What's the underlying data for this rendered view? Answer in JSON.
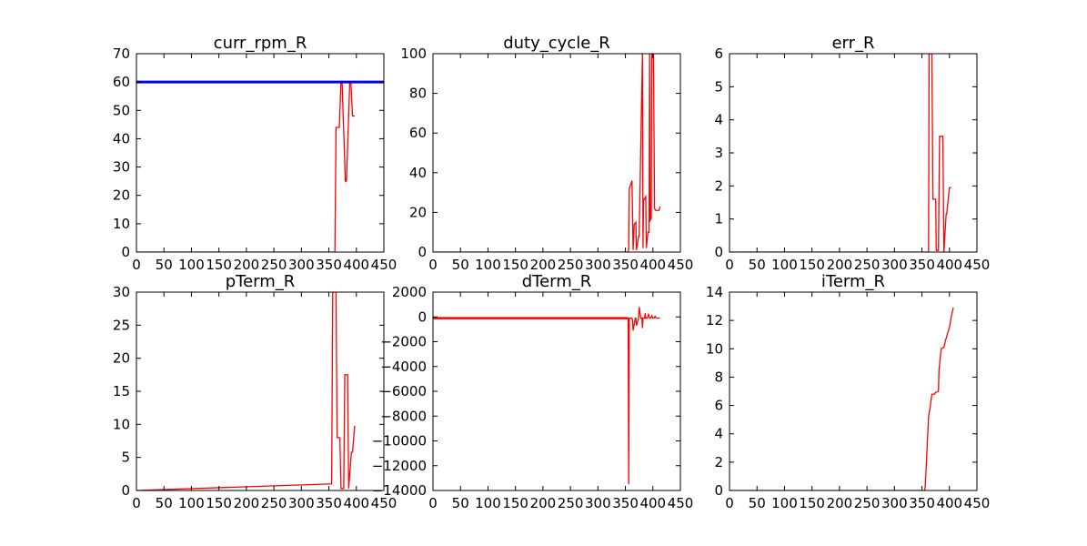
{
  "chart_data": [
    {
      "type": "line",
      "title": "curr_rpm_R",
      "xlim": [
        0,
        450
      ],
      "ylim": [
        0,
        70
      ],
      "xticks": [
        "0",
        "50",
        "100",
        "150",
        "200",
        "250",
        "300",
        "350",
        "400",
        "450"
      ],
      "yticks": [
        "0",
        "10",
        "20",
        "30",
        "40",
        "50",
        "60",
        "70"
      ],
      "series": [
        {
          "color": "#ff0000",
          "width": 1.3,
          "x": [
            0,
            361,
            363,
            369,
            372,
            374,
            380,
            382,
            388,
            390,
            393,
            397
          ],
          "y": [
            0,
            0,
            44,
            44,
            60,
            60,
            25,
            25,
            60,
            60,
            48,
            48
          ]
        },
        {
          "color": "#0000ff",
          "width": 3,
          "x": [
            0,
            450
          ],
          "y": [
            60,
            60
          ]
        }
      ]
    },
    {
      "type": "line",
      "title": "duty_cycle_R",
      "xlim": [
        0,
        450
      ],
      "ylim": [
        0,
        100
      ],
      "xticks": [
        "0",
        "50",
        "100",
        "150",
        "200",
        "250",
        "300",
        "350",
        "400",
        "450"
      ],
      "yticks": [
        "0",
        "20",
        "40",
        "60",
        "80",
        "100"
      ],
      "series": [
        {
          "color": "#ff0000",
          "width": 1.3,
          "x": [
            0,
            355,
            356,
            357,
            362,
            364,
            366,
            369,
            370,
            374,
            375,
            381,
            382,
            383,
            387,
            388,
            391,
            393,
            394,
            395,
            397,
            398,
            401,
            403,
            405,
            410,
            411,
            413
          ],
          "y": [
            0,
            0,
            2,
            32,
            36,
            1,
            14,
            15,
            1,
            8,
            8,
            100,
            2,
            26,
            28,
            2,
            10,
            10,
            100,
            16,
            17,
            100,
            100,
            22,
            21,
            21,
            21,
            23
          ]
        }
      ]
    },
    {
      "type": "line",
      "title": "err_R",
      "xlim": [
        0,
        450
      ],
      "ylim": [
        0,
        6
      ],
      "xticks": [
        "0",
        "50",
        "100",
        "150",
        "200",
        "250",
        "300",
        "350",
        "400",
        "450"
      ],
      "yticks": [
        "0",
        "1",
        "2",
        "3",
        "4",
        "5",
        "6"
      ],
      "series": [
        {
          "color": "#ff0000",
          "width": 1.3,
          "x": [
            0,
            362,
            363,
            368,
            370,
            375,
            376,
            380,
            382,
            388,
            390,
            394,
            395,
            400,
            403
          ],
          "y": [
            0,
            0,
            6,
            6,
            1.6,
            1.6,
            0.05,
            0.05,
            3.5,
            3.5,
            0,
            1.15,
            1.15,
            1.95,
            1.95
          ]
        }
      ]
    },
    {
      "type": "line",
      "title": "pTerm_R",
      "xlim": [
        0,
        450
      ],
      "ylim": [
        0,
        30
      ],
      "xticks": [
        "0",
        "50",
        "100",
        "150",
        "200",
        "250",
        "300",
        "350",
        "400",
        "450"
      ],
      "yticks": [
        "0",
        "5",
        "10",
        "15",
        "20",
        "25",
        "30"
      ],
      "series": [
        {
          "color": "#ff0000",
          "width": 1.3,
          "x": [
            0,
            355,
            357,
            363,
            365,
            370,
            372,
            377,
            379,
            384,
            386,
            391,
            393,
            397
          ],
          "y": [
            0,
            1,
            30,
            30,
            8,
            8,
            0.3,
            0.3,
            17.5,
            17.5,
            0.3,
            5.8,
            5.8,
            9.8
          ]
        }
      ]
    },
    {
      "type": "line",
      "title": "dTerm_R",
      "xlim": [
        0,
        450
      ],
      "ylim": [
        -14000,
        2000
      ],
      "xticks": [
        "0",
        "50",
        "100",
        "150",
        "200",
        "250",
        "300",
        "350",
        "400",
        "450"
      ],
      "yticks": [
        "−14000",
        "−12000",
        "−10000",
        "−8000",
        "−6000",
        "−4000",
        "−2000",
        "0",
        "2000"
      ],
      "series": [
        {
          "color": "#ff0000",
          "width": 2.5,
          "x": [
            0,
            354
          ],
          "y": [
            -100,
            -100
          ]
        },
        {
          "color": "#ff0000",
          "width": 1.3,
          "x": [
            354,
            355,
            356,
            357,
            362,
            363,
            364,
            368,
            369,
            370,
            374,
            375,
            378,
            380,
            381,
            382,
            385,
            386,
            387,
            390,
            392,
            394,
            396,
            398,
            400,
            402,
            404,
            406,
            410,
            413
          ],
          "y": [
            -100,
            -100,
            -13500,
            -100,
            -100,
            -300,
            -1100,
            -100,
            -100,
            -700,
            -100,
            800,
            -100,
            -100,
            -900,
            -100,
            -100,
            300,
            -100,
            -100,
            200,
            -100,
            -100,
            100,
            -100,
            -100,
            50,
            -100,
            -100,
            -100
          ]
        }
      ]
    },
    {
      "type": "line",
      "title": "iTerm_R",
      "xlim": [
        0,
        450
      ],
      "ylim": [
        0,
        14
      ],
      "xticks": [
        "0",
        "50",
        "100",
        "150",
        "200",
        "250",
        "300",
        "350",
        "400",
        "450"
      ],
      "yticks": [
        "0",
        "2",
        "4",
        "6",
        "8",
        "10",
        "12",
        "14"
      ],
      "series": [
        {
          "color": "#ff0000",
          "width": 1.3,
          "x": [
            0,
            355,
            356,
            358,
            362,
            365,
            368,
            373,
            374,
            380,
            381,
            385,
            387,
            390,
            393,
            396,
            400,
            404,
            407
          ],
          "y": [
            0,
            0,
            0.3,
            1.9,
            5.2,
            5.9,
            6.8,
            6.8,
            6.9,
            7.0,
            8.5,
            10.0,
            10.05,
            10.1,
            10.6,
            11.0,
            11.5,
            12.4,
            12.9
          ]
        }
      ]
    }
  ]
}
